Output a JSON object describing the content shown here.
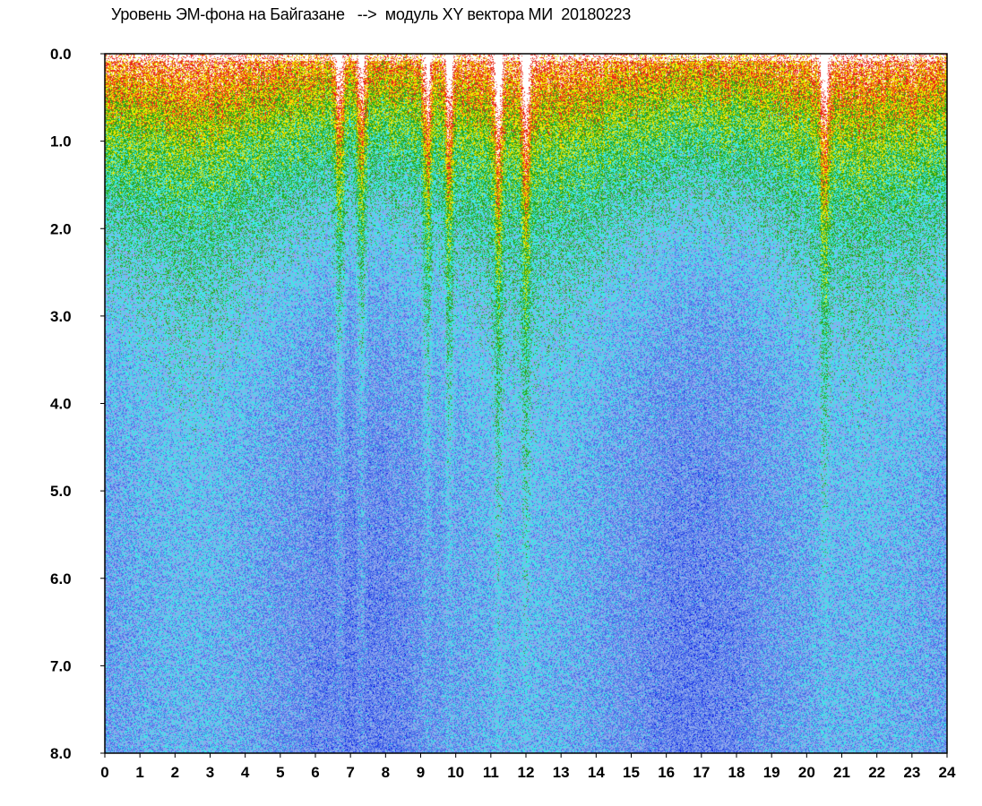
{
  "chart_data": {
    "type": "heatmap",
    "title": "Уровень ЭМ-фона на Байгазане   -->  модуль XY вектора МИ  20180223",
    "xlabel": "",
    "ylabel": "",
    "xlim": [
      0,
      24
    ],
    "ylim": [
      8.0,
      0.0
    ],
    "y_axis_inverted": true,
    "x_ticks": [
      "0",
      "1",
      "2",
      "3",
      "4",
      "5",
      "6",
      "7",
      "8",
      "9",
      "10",
      "11",
      "12",
      "13",
      "14",
      "15",
      "16",
      "17",
      "18",
      "19",
      "20",
      "21",
      "22",
      "23",
      "24"
    ],
    "y_ticks": [
      "0.0",
      "1.0",
      "2.0",
      "3.0",
      "4.0",
      "5.0",
      "6.0",
      "7.0",
      "8.0"
    ],
    "colorscale": [
      "#0a1ee8",
      "#4a6ee8",
      "#8fa8ee",
      "#3ee8e8",
      "#2aa61a",
      "#f2e600",
      "#e8281a",
      "#ffffff"
    ],
    "bright_streaks_x": [
      6.7,
      7.3,
      9.2,
      9.8,
      11.2,
      12.0,
      20.5
    ],
    "intense_near_top_y_range": [
      0.0,
      1.5
    ],
    "grid": false,
    "legend": "none"
  }
}
